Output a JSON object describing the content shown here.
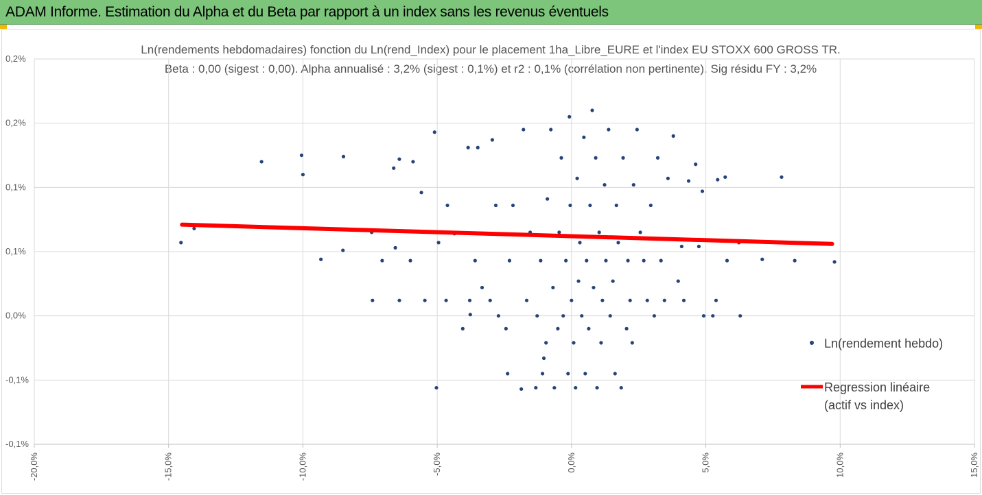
{
  "header": {
    "title": "ADAM Informe. Estimation du Alpha et du Beta par rapport à un index sans les revenus éventuels"
  },
  "chart_data": {
    "type": "scatter",
    "title": "Ln(rendements hebdomadaires) fonction du Ln(rend_Index) pour le placement 1ha_Libre_EURE et l'index EU STOXX 600 GROSS TR.",
    "subtitle": "Beta : 0,00 (sigest : 0,00).  Alpha annualisé : 3,2% (sigest : 0,1%) et r2 : 0,1% (corrélation non pertinente). Sig résidu FY : 3,2%",
    "xlim": [
      -20,
      15
    ],
    "xticks": [
      {
        "value": -20,
        "label": "-20,0%"
      },
      {
        "value": -15,
        "label": "-15,0%"
      },
      {
        "value": -10,
        "label": "-10,0%"
      },
      {
        "value": -5,
        "label": "-5,0%"
      },
      {
        "value": 0,
        "label": "0,0%"
      },
      {
        "value": 5,
        "label": "5,0%"
      },
      {
        "value": 10,
        "label": "10,0%"
      },
      {
        "value": 15,
        "label": "15,0%"
      }
    ],
    "ylim": [
      -0.1,
      0.2
    ],
    "yticks": [
      {
        "value": -0.1,
        "label": "-0,1%"
      },
      {
        "value": -0.05,
        "label": "-0,1%"
      },
      {
        "value": 0,
        "label": "0,0%"
      },
      {
        "value": 0.05,
        "label": "0,1%"
      },
      {
        "value": 0.1,
        "label": "0,1%"
      },
      {
        "value": 0.15,
        "label": "0,2%"
      },
      {
        "value": 0.2,
        "label": "0,2%"
      }
    ],
    "grid": true,
    "legend": "right",
    "series": [
      {
        "name": "Ln(rendement hebdo)",
        "type": "scatter",
        "color": "#264478",
        "x": [
          -14.54,
          -14.05,
          -11.54,
          -10.05,
          -10.0,
          -8.49,
          -9.33,
          -8.51,
          -7.44,
          -7.41,
          -7.05,
          -6.41,
          -6.56,
          -6.62,
          -6.41,
          -6.0,
          -5.9,
          -5.59,
          -5.46,
          -5.1,
          -5.03,
          -4.67,
          -4.95,
          -4.62,
          -4.36,
          -4.05,
          -3.79,
          -3.77,
          -3.85,
          -3.49,
          -3.59,
          -3.33,
          -3.03,
          -2.95,
          -2.82,
          -2.72,
          -2.38,
          -2.44,
          -2.31,
          -2.18,
          -1.87,
          -1.79,
          -1.67,
          -1.54,
          -1.33,
          -1.28,
          -1.15,
          -1.08,
          -1.03,
          -0.95,
          -0.9,
          -0.77,
          -0.69,
          -0.64,
          -0.51,
          -0.46,
          -0.38,
          -0.31,
          -0.21,
          -0.13,
          -0.08,
          -0.05,
          0.0,
          0.08,
          0.15,
          0.21,
          0.26,
          0.31,
          0.38,
          0.46,
          0.51,
          0.56,
          0.64,
          0.69,
          0.77,
          0.82,
          0.9,
          0.95,
          1.03,
          1.1,
          1.15,
          1.23,
          1.28,
          1.38,
          1.44,
          1.54,
          1.62,
          1.67,
          1.74,
          1.85,
          1.92,
          2.05,
          2.1,
          2.18,
          2.26,
          2.31,
          2.44,
          2.56,
          2.69,
          2.82,
          2.95,
          3.08,
          3.21,
          3.33,
          3.46,
          3.59,
          3.79,
          3.97,
          4.18,
          4.1,
          4.36,
          4.62,
          4.74,
          4.87,
          4.92,
          5.38,
          5.26,
          5.44,
          5.79,
          5.72,
          6.28,
          6.23,
          7.1,
          7.82,
          8.31,
          9.79
        ],
        "values": [
          0.057,
          0.068,
          0.12,
          0.125,
          0.11,
          0.124,
          0.044,
          0.051,
          0.065,
          0.012,
          0.043,
          0.012,
          0.053,
          0.115,
          0.122,
          0.043,
          0.12,
          0.096,
          0.012,
          0.143,
          -0.056,
          0.012,
          0.057,
          0.086,
          0.064,
          -0.01,
          0.012,
          0.001,
          0.131,
          0.131,
          0.043,
          0.022,
          0.012,
          0.137,
          0.086,
          0.0,
          -0.045,
          -0.01,
          0.043,
          0.086,
          -0.057,
          0.145,
          0.012,
          0.065,
          -0.056,
          0.0,
          0.043,
          -0.045,
          -0.033,
          -0.021,
          0.091,
          0.145,
          0.022,
          -0.056,
          -0.01,
          0.065,
          0.123,
          0.0,
          0.043,
          -0.045,
          0.155,
          0.086,
          0.012,
          -0.021,
          -0.056,
          0.107,
          0.027,
          0.057,
          0.0,
          0.139,
          -0.045,
          0.043,
          -0.01,
          0.086,
          0.16,
          0.022,
          0.123,
          -0.056,
          0.065,
          -0.021,
          0.012,
          0.102,
          0.043,
          0.145,
          0.0,
          0.027,
          -0.045,
          0.086,
          0.057,
          -0.056,
          0.123,
          -0.01,
          0.043,
          0.012,
          -0.021,
          0.102,
          0.145,
          0.065,
          0.043,
          0.012,
          0.086,
          0.0,
          0.123,
          0.043,
          0.012,
          0.107,
          0.14,
          0.027,
          0.012,
          0.054,
          0.105,
          0.118,
          0.054,
          0.097,
          0.0,
          0.012,
          0.0,
          0.106,
          0.043,
          0.108,
          0.0,
          0.057,
          0.044,
          0.108,
          0.043,
          0.042
        ]
      },
      {
        "name": "Regression linéaire (actif vs index)",
        "type": "line",
        "color": "#ff0000",
        "x": [
          -14.5,
          9.7
        ],
        "values": [
          0.071,
          0.056
        ]
      }
    ]
  }
}
